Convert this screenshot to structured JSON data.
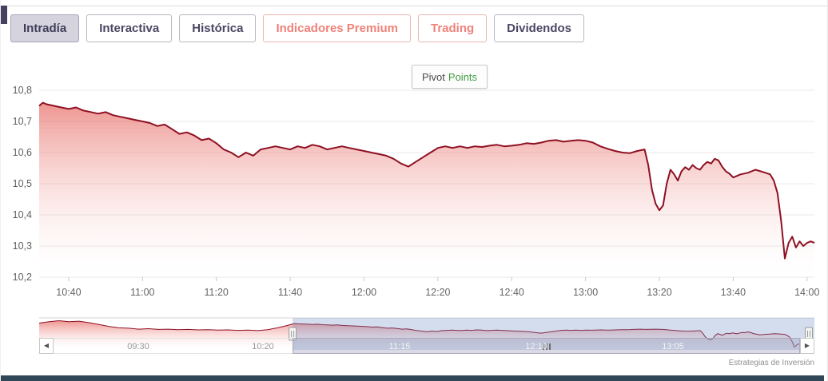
{
  "page": {
    "attribution": "Estrategias de Inversión"
  },
  "tabs": [
    {
      "label": "Intradía",
      "variant": "active"
    },
    {
      "label": "Interactiva",
      "variant": "default"
    },
    {
      "label": "Histórica",
      "variant": "default"
    },
    {
      "label": "Indicadores Premium",
      "variant": "premium"
    },
    {
      "label": "Trading",
      "variant": "premium"
    },
    {
      "label": "Dividendos",
      "variant": "default"
    }
  ],
  "pivot_button": {
    "label_1": "Pivot",
    "label_2": "Points"
  },
  "icons": {
    "scroll_left": "◀",
    "scroll_right": "▶"
  },
  "chart_data": {
    "type": "area",
    "title": "",
    "xlabel": "",
    "ylabel": "",
    "grid": "horizontal",
    "ylim": [
      10.2,
      10.8
    ],
    "y_ticks": [
      [
        "10,2",
        10.2
      ],
      [
        "10,3",
        10.3
      ],
      [
        "10,4",
        10.4
      ],
      [
        "10,5",
        10.5
      ],
      [
        "10,6",
        10.6
      ],
      [
        "10,7",
        10.7
      ],
      [
        "10,8",
        10.8
      ]
    ],
    "x_ticks": [
      "10:40",
      "11:00",
      "11:20",
      "11:40",
      "12:00",
      "12:20",
      "12:40",
      "13:00",
      "13:20",
      "13:40",
      "14:00"
    ],
    "colors": {
      "line": "#8e1023",
      "fill_top": "rgba(224,62,54,0.55)",
      "fill_bottom": "rgba(255,255,255,0.06)",
      "mask": "rgba(102,133,194,0.28)",
      "accent_purple": "#44405e",
      "tab_text": "#4a4763",
      "premium_text": "#f0827a"
    },
    "main_series": {
      "name": "intraday-price",
      "points": [
        [
          "10:32",
          10.75
        ],
        [
          "10:33",
          10.76
        ],
        [
          "10:34",
          10.755
        ],
        [
          "10:36",
          10.75
        ],
        [
          "10:38",
          10.745
        ],
        [
          "10:40",
          10.74
        ],
        [
          "10:42",
          10.745
        ],
        [
          "10:44",
          10.735
        ],
        [
          "10:46",
          10.73
        ],
        [
          "10:48",
          10.725
        ],
        [
          "10:50",
          10.73
        ],
        [
          "10:52",
          10.72
        ],
        [
          "10:54",
          10.715
        ],
        [
          "10:56",
          10.71
        ],
        [
          "10:58",
          10.705
        ],
        [
          "11:00",
          10.7
        ],
        [
          "11:02",
          10.695
        ],
        [
          "11:04",
          10.685
        ],
        [
          "11:06",
          10.69
        ],
        [
          "11:08",
          10.675
        ],
        [
          "11:10",
          10.66
        ],
        [
          "11:12",
          10.665
        ],
        [
          "11:14",
          10.655
        ],
        [
          "11:16",
          10.64
        ],
        [
          "11:18",
          10.645
        ],
        [
          "11:20",
          10.63
        ],
        [
          "11:22",
          10.61
        ],
        [
          "11:24",
          10.6
        ],
        [
          "11:26",
          10.585
        ],
        [
          "11:28",
          10.6
        ],
        [
          "11:30",
          10.59
        ],
        [
          "11:32",
          10.61
        ],
        [
          "11:34",
          10.615
        ],
        [
          "11:36",
          10.62
        ],
        [
          "11:38",
          10.615
        ],
        [
          "11:40",
          10.61
        ],
        [
          "11:42",
          10.62
        ],
        [
          "11:44",
          10.615
        ],
        [
          "11:46",
          10.625
        ],
        [
          "11:48",
          10.62
        ],
        [
          "11:50",
          10.61
        ],
        [
          "11:52",
          10.615
        ],
        [
          "11:54",
          10.62
        ],
        [
          "11:56",
          10.615
        ],
        [
          "11:58",
          10.61
        ],
        [
          "12:00",
          10.605
        ],
        [
          "12:02",
          10.6
        ],
        [
          "12:04",
          10.595
        ],
        [
          "12:06",
          10.59
        ],
        [
          "12:08",
          10.58
        ],
        [
          "12:10",
          10.565
        ],
        [
          "12:12",
          10.555
        ],
        [
          "12:14",
          10.57
        ],
        [
          "12:16",
          10.585
        ],
        [
          "12:18",
          10.6
        ],
        [
          "12:20",
          10.615
        ],
        [
          "12:22",
          10.62
        ],
        [
          "12:24",
          10.615
        ],
        [
          "12:26",
          10.62
        ],
        [
          "12:28",
          10.615
        ],
        [
          "12:30",
          10.62
        ],
        [
          "12:32",
          10.618
        ],
        [
          "12:34",
          10.622
        ],
        [
          "12:36",
          10.625
        ],
        [
          "12:38",
          10.62
        ],
        [
          "12:40",
          10.622
        ],
        [
          "12:42",
          10.625
        ],
        [
          "12:44",
          10.63
        ],
        [
          "12:46",
          10.628
        ],
        [
          "12:48",
          10.632
        ],
        [
          "12:50",
          10.638
        ],
        [
          "12:52",
          10.64
        ],
        [
          "12:54",
          10.635
        ],
        [
          "12:56",
          10.638
        ],
        [
          "12:58",
          10.64
        ],
        [
          "13:00",
          10.638
        ],
        [
          "13:02",
          10.632
        ],
        [
          "13:04",
          10.62
        ],
        [
          "13:06",
          10.612
        ],
        [
          "13:08",
          10.605
        ],
        [
          "13:10",
          10.6
        ],
        [
          "13:12",
          10.598
        ],
        [
          "13:14",
          10.605
        ],
        [
          "13:16",
          10.61
        ],
        [
          "13:17",
          10.56
        ],
        [
          "13:18",
          10.48
        ],
        [
          "13:19",
          10.435
        ],
        [
          "13:20",
          10.415
        ],
        [
          "13:21",
          10.43
        ],
        [
          "13:22",
          10.5
        ],
        [
          "13:23",
          10.545
        ],
        [
          "13:24",
          10.53
        ],
        [
          "13:25",
          10.51
        ],
        [
          "13:26",
          10.54
        ],
        [
          "13:27",
          10.553
        ],
        [
          "13:28",
          10.545
        ],
        [
          "13:29",
          10.56
        ],
        [
          "13:30",
          10.55
        ],
        [
          "13:31",
          10.545
        ],
        [
          "13:32",
          10.56
        ],
        [
          "13:33",
          10.57
        ],
        [
          "13:34",
          10.565
        ],
        [
          "13:35",
          10.58
        ],
        [
          "13:36",
          10.575
        ],
        [
          "13:37",
          10.555
        ],
        [
          "13:38",
          10.54
        ],
        [
          "13:39",
          10.532
        ],
        [
          "13:40",
          10.52
        ],
        [
          "13:42",
          10.53
        ],
        [
          "13:44",
          10.535
        ],
        [
          "13:46",
          10.545
        ],
        [
          "13:48",
          10.538
        ],
        [
          "13:50",
          10.53
        ],
        [
          "13:51",
          10.51
        ],
        [
          "13:52",
          10.47
        ],
        [
          "13:53",
          10.38
        ],
        [
          "13:54",
          10.26
        ],
        [
          "13:55",
          10.31
        ],
        [
          "13:56",
          10.33
        ],
        [
          "13:57",
          10.295
        ],
        [
          "13:58",
          10.315
        ],
        [
          "13:59",
          10.3
        ],
        [
          "14:00",
          10.31
        ],
        [
          "14:01",
          10.315
        ],
        [
          "14:02",
          10.31
        ]
      ]
    },
    "navigator": {
      "x_labels": [
        "09:30",
        "10:20",
        "11:15",
        "12:10",
        "13:05"
      ],
      "selection": [
        "10:32",
        "14:02"
      ],
      "vlim": [
        10.2,
        10.88
      ],
      "pre_points": [
        [
          "08:50",
          10.77
        ],
        [
          "08:54",
          10.8
        ],
        [
          "08:58",
          10.82
        ],
        [
          "09:02",
          10.8
        ],
        [
          "09:06",
          10.81
        ],
        [
          "09:10",
          10.78
        ],
        [
          "09:14",
          10.74
        ],
        [
          "09:18",
          10.7
        ],
        [
          "09:22",
          10.67
        ],
        [
          "09:26",
          10.66
        ],
        [
          "09:30",
          10.64
        ],
        [
          "09:34",
          10.65
        ],
        [
          "09:38",
          10.635
        ],
        [
          "09:42",
          10.64
        ],
        [
          "09:46",
          10.63
        ],
        [
          "09:50",
          10.635
        ],
        [
          "09:54",
          10.625
        ],
        [
          "09:58",
          10.63
        ],
        [
          "10:02",
          10.62
        ],
        [
          "10:06",
          10.625
        ],
        [
          "10:10",
          10.615
        ],
        [
          "10:14",
          10.62
        ],
        [
          "10:18",
          10.61
        ],
        [
          "10:22",
          10.63
        ],
        [
          "10:26",
          10.67
        ],
        [
          "10:30",
          10.72
        ]
      ]
    }
  }
}
